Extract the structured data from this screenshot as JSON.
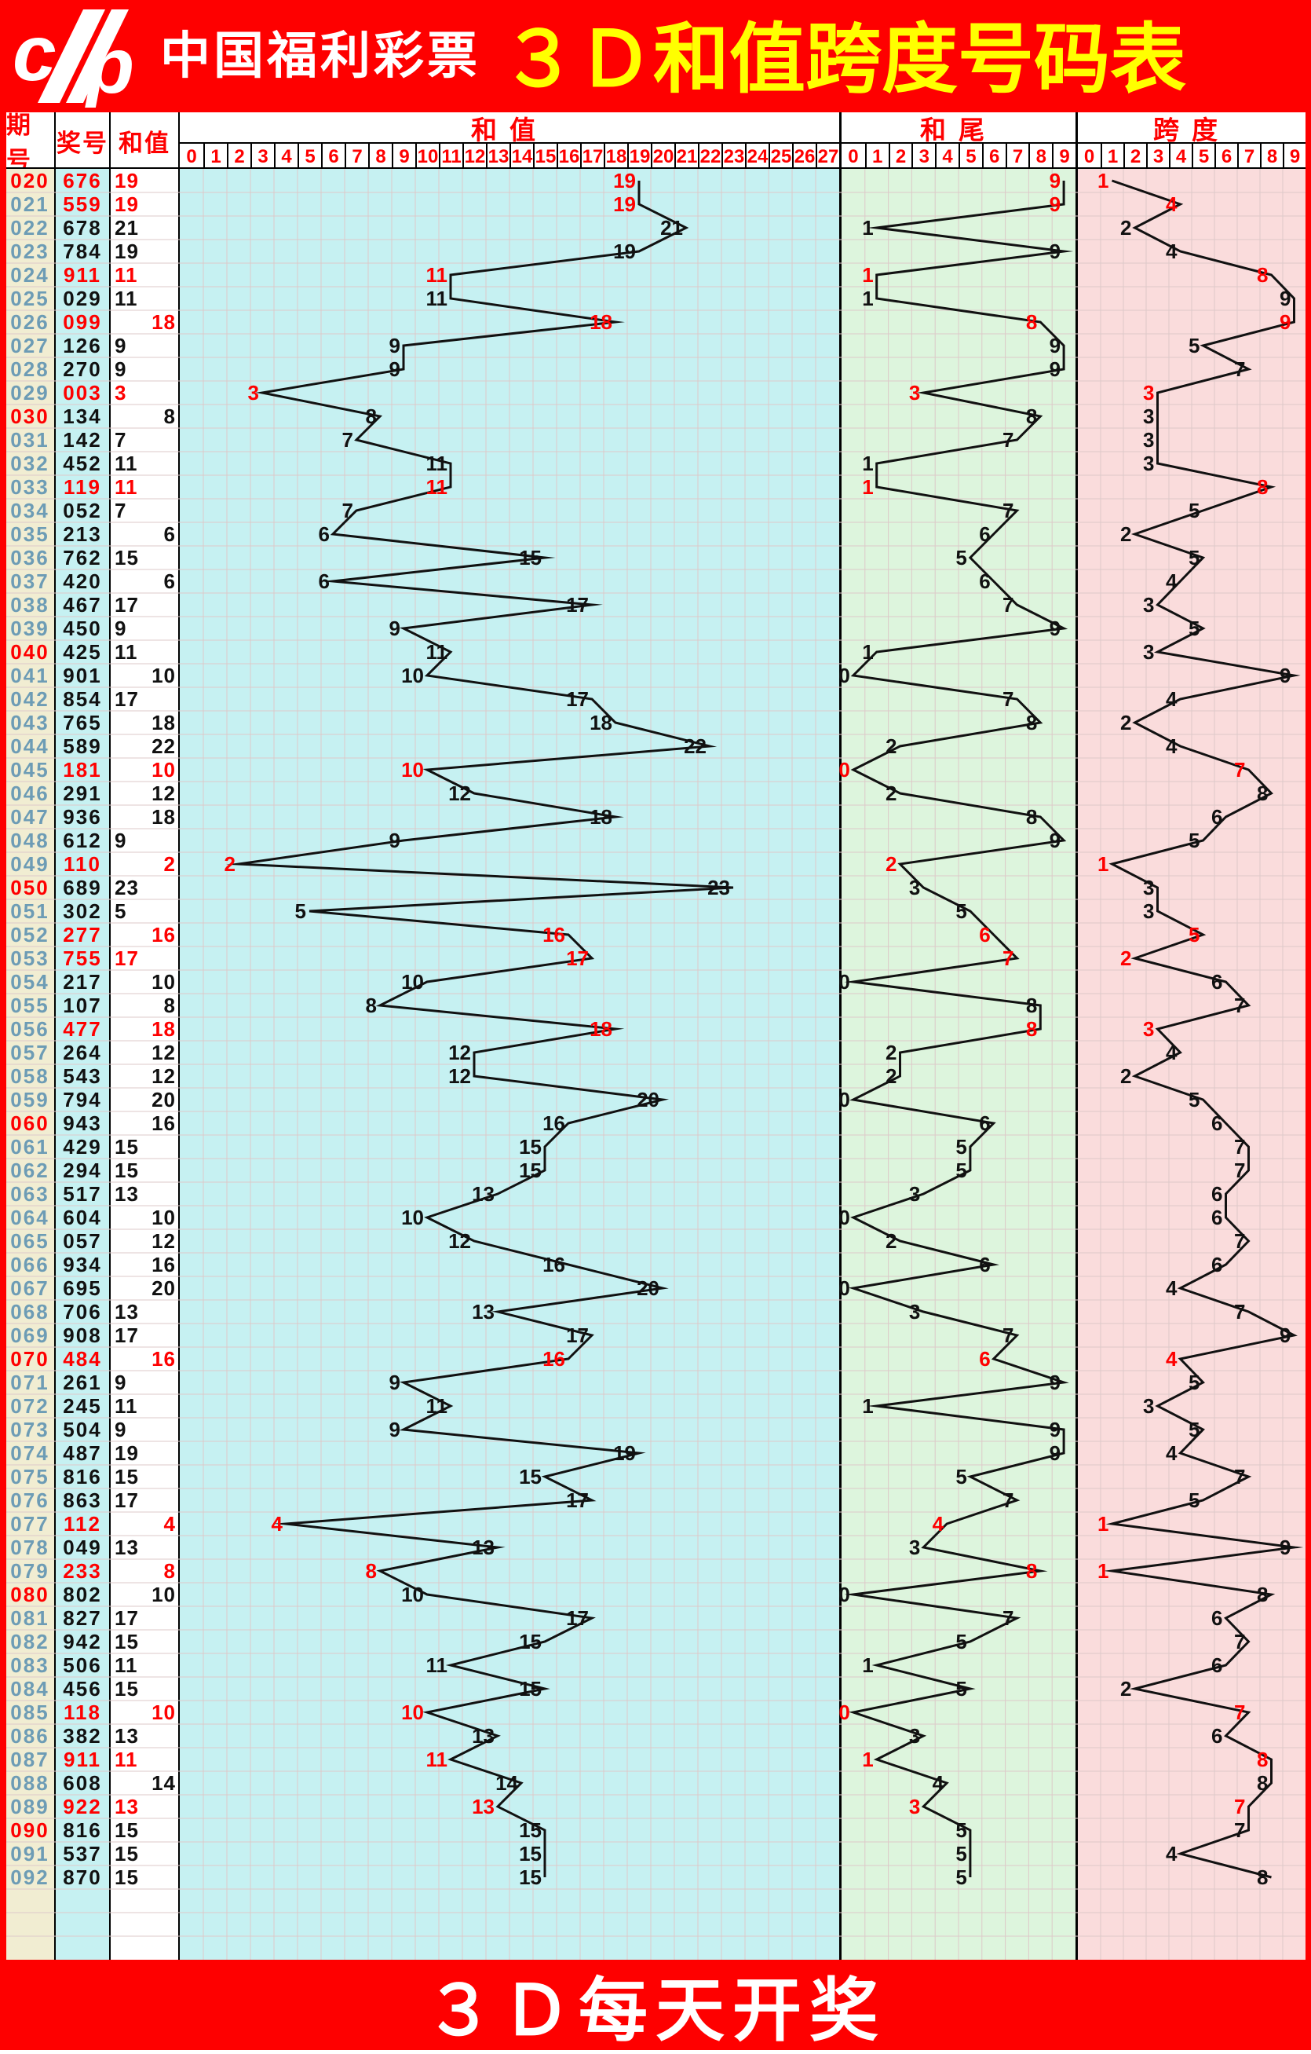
{
  "banner": {
    "brand": "中国福利彩票",
    "title": "３Ｄ和值跨度号码表",
    "logo": "china-welfare-lottery-cp-logo"
  },
  "footer": {
    "text": "３Ｄ每天开奖"
  },
  "table": {
    "headers": {
      "period": "期号",
      "number": "奖号",
      "sum": "和值"
    },
    "panels": [
      {
        "title": "和值",
        "ticks": [
          0,
          1,
          2,
          3,
          4,
          5,
          6,
          7,
          8,
          9,
          10,
          11,
          12,
          13,
          14,
          15,
          16,
          17,
          18,
          19,
          20,
          21,
          22,
          23,
          24,
          25,
          26,
          27
        ]
      },
      {
        "title": "和尾",
        "ticks": [
          0,
          1,
          2,
          3,
          4,
          5,
          6,
          7,
          8,
          9
        ]
      },
      {
        "title": "跨度",
        "ticks": [
          0,
          1,
          2,
          3,
          4,
          5,
          6,
          7,
          8,
          9
        ]
      }
    ]
  },
  "colors": {
    "banner_red": "#fe0000",
    "title_yellow": "#ffff00",
    "sum_panel_bg": "#c6f1f2",
    "tail_panel_bg": "#ddf5dd",
    "span_panel_bg": "#fadcdc",
    "period_col_bg": "#f1edd2",
    "number_col_bg": "#c6f1f2",
    "sum_col_bg": "#ffffff",
    "period_text": "#6d9cb5",
    "highlight_red": "#fe0000",
    "line_black": "#111111",
    "grid_line": "#ddc9c9"
  },
  "rows": [
    {
      "p": "020",
      "n": "676",
      "s": 19,
      "t": 9,
      "k": 1,
      "pair": true,
      "hl": true
    },
    {
      "p": "021",
      "n": "559",
      "s": 19,
      "t": 9,
      "k": 4,
      "pair": true,
      "hl": false
    },
    {
      "p": "022",
      "n": "678",
      "s": 21,
      "t": 1,
      "k": 2,
      "pair": false,
      "hl": false
    },
    {
      "p": "023",
      "n": "784",
      "s": 19,
      "t": 9,
      "k": 4,
      "pair": false,
      "hl": false
    },
    {
      "p": "024",
      "n": "911",
      "s": 11,
      "t": 1,
      "k": 8,
      "pair": true,
      "hl": false
    },
    {
      "p": "025",
      "n": "029",
      "s": 11,
      "t": 1,
      "k": 9,
      "pair": false,
      "hl": false
    },
    {
      "p": "026",
      "n": "099",
      "s": 18,
      "t": 8,
      "k": 9,
      "pair": true,
      "hl": false
    },
    {
      "p": "027",
      "n": "126",
      "s": 9,
      "t": 9,
      "k": 5,
      "pair": false,
      "hl": false
    },
    {
      "p": "028",
      "n": "270",
      "s": 9,
      "t": 9,
      "k": 7,
      "pair": false,
      "hl": false
    },
    {
      "p": "029",
      "n": "003",
      "s": 3,
      "t": 3,
      "k": 3,
      "pair": true,
      "hl": false
    },
    {
      "p": "030",
      "n": "134",
      "s": 8,
      "t": 8,
      "k": 3,
      "pair": false,
      "hl": true
    },
    {
      "p": "031",
      "n": "142",
      "s": 7,
      "t": 7,
      "k": 3,
      "pair": false,
      "hl": false
    },
    {
      "p": "032",
      "n": "452",
      "s": 11,
      "t": 1,
      "k": 3,
      "pair": false,
      "hl": false
    },
    {
      "p": "033",
      "n": "119",
      "s": 11,
      "t": 1,
      "k": 8,
      "pair": true,
      "hl": false
    },
    {
      "p": "034",
      "n": "052",
      "s": 7,
      "t": 7,
      "k": 5,
      "pair": false,
      "hl": false
    },
    {
      "p": "035",
      "n": "213",
      "s": 6,
      "t": 6,
      "k": 2,
      "pair": false,
      "hl": false
    },
    {
      "p": "036",
      "n": "762",
      "s": 15,
      "t": 5,
      "k": 5,
      "pair": false,
      "hl": false
    },
    {
      "p": "037",
      "n": "420",
      "s": 6,
      "t": 6,
      "k": 4,
      "pair": false,
      "hl": false
    },
    {
      "p": "038",
      "n": "467",
      "s": 17,
      "t": 7,
      "k": 3,
      "pair": false,
      "hl": false
    },
    {
      "p": "039",
      "n": "450",
      "s": 9,
      "t": 9,
      "k": 5,
      "pair": false,
      "hl": false
    },
    {
      "p": "040",
      "n": "425",
      "s": 11,
      "t": 1,
      "k": 3,
      "pair": false,
      "hl": true
    },
    {
      "p": "041",
      "n": "901",
      "s": 10,
      "t": 0,
      "k": 9,
      "pair": false,
      "hl": false
    },
    {
      "p": "042",
      "n": "854",
      "s": 17,
      "t": 7,
      "k": 4,
      "pair": false,
      "hl": false
    },
    {
      "p": "043",
      "n": "765",
      "s": 18,
      "t": 8,
      "k": 2,
      "pair": false,
      "hl": false
    },
    {
      "p": "044",
      "n": "589",
      "s": 22,
      "t": 2,
      "k": 4,
      "pair": false,
      "hl": false
    },
    {
      "p": "045",
      "n": "181",
      "s": 10,
      "t": 0,
      "k": 7,
      "pair": true,
      "hl": false
    },
    {
      "p": "046",
      "n": "291",
      "s": 12,
      "t": 2,
      "k": 8,
      "pair": false,
      "hl": false
    },
    {
      "p": "047",
      "n": "936",
      "s": 18,
      "t": 8,
      "k": 6,
      "pair": false,
      "hl": false
    },
    {
      "p": "048",
      "n": "612",
      "s": 9,
      "t": 9,
      "k": 5,
      "pair": false,
      "hl": false
    },
    {
      "p": "049",
      "n": "110",
      "s": 2,
      "t": 2,
      "k": 1,
      "pair": true,
      "hl": false
    },
    {
      "p": "050",
      "n": "689",
      "s": 23,
      "t": 3,
      "k": 3,
      "pair": false,
      "hl": true
    },
    {
      "p": "051",
      "n": "302",
      "s": 5,
      "t": 5,
      "k": 3,
      "pair": false,
      "hl": false
    },
    {
      "p": "052",
      "n": "277",
      "s": 16,
      "t": 6,
      "k": 5,
      "pair": true,
      "hl": false
    },
    {
      "p": "053",
      "n": "755",
      "s": 17,
      "t": 7,
      "k": 2,
      "pair": true,
      "hl": false
    },
    {
      "p": "054",
      "n": "217",
      "s": 10,
      "t": 0,
      "k": 6,
      "pair": false,
      "hl": false
    },
    {
      "p": "055",
      "n": "107",
      "s": 8,
      "t": 8,
      "k": 7,
      "pair": false,
      "hl": false
    },
    {
      "p": "056",
      "n": "477",
      "s": 18,
      "t": 8,
      "k": 3,
      "pair": true,
      "hl": false
    },
    {
      "p": "057",
      "n": "264",
      "s": 12,
      "t": 2,
      "k": 4,
      "pair": false,
      "hl": false
    },
    {
      "p": "058",
      "n": "543",
      "s": 12,
      "t": 2,
      "k": 2,
      "pair": false,
      "hl": false
    },
    {
      "p": "059",
      "n": "794",
      "s": 20,
      "t": 0,
      "k": 5,
      "pair": false,
      "hl": false
    },
    {
      "p": "060",
      "n": "943",
      "s": 16,
      "t": 6,
      "k": 6,
      "pair": false,
      "hl": true
    },
    {
      "p": "061",
      "n": "429",
      "s": 15,
      "t": 5,
      "k": 7,
      "pair": false,
      "hl": false
    },
    {
      "p": "062",
      "n": "294",
      "s": 15,
      "t": 5,
      "k": 7,
      "pair": false,
      "hl": false
    },
    {
      "p": "063",
      "n": "517",
      "s": 13,
      "t": 3,
      "k": 6,
      "pair": false,
      "hl": false
    },
    {
      "p": "064",
      "n": "604",
      "s": 10,
      "t": 0,
      "k": 6,
      "pair": false,
      "hl": false
    },
    {
      "p": "065",
      "n": "057",
      "s": 12,
      "t": 2,
      "k": 7,
      "pair": false,
      "hl": false
    },
    {
      "p": "066",
      "n": "934",
      "s": 16,
      "t": 6,
      "k": 6,
      "pair": false,
      "hl": false
    },
    {
      "p": "067",
      "n": "695",
      "s": 20,
      "t": 0,
      "k": 4,
      "pair": false,
      "hl": false
    },
    {
      "p": "068",
      "n": "706",
      "s": 13,
      "t": 3,
      "k": 7,
      "pair": false,
      "hl": false
    },
    {
      "p": "069",
      "n": "908",
      "s": 17,
      "t": 7,
      "k": 9,
      "pair": false,
      "hl": false
    },
    {
      "p": "070",
      "n": "484",
      "s": 16,
      "t": 6,
      "k": 4,
      "pair": true,
      "hl": true
    },
    {
      "p": "071",
      "n": "261",
      "s": 9,
      "t": 9,
      "k": 5,
      "pair": false,
      "hl": false
    },
    {
      "p": "072",
      "n": "245",
      "s": 11,
      "t": 1,
      "k": 3,
      "pair": false,
      "hl": false
    },
    {
      "p": "073",
      "n": "504",
      "s": 9,
      "t": 9,
      "k": 5,
      "pair": false,
      "hl": false
    },
    {
      "p": "074",
      "n": "487",
      "s": 19,
      "t": 9,
      "k": 4,
      "pair": false,
      "hl": false
    },
    {
      "p": "075",
      "n": "816",
      "s": 15,
      "t": 5,
      "k": 7,
      "pair": false,
      "hl": false
    },
    {
      "p": "076",
      "n": "863",
      "s": 17,
      "t": 7,
      "k": 5,
      "pair": false,
      "hl": false
    },
    {
      "p": "077",
      "n": "112",
      "s": 4,
      "t": 4,
      "k": 1,
      "pair": true,
      "hl": false
    },
    {
      "p": "078",
      "n": "049",
      "s": 13,
      "t": 3,
      "k": 9,
      "pair": false,
      "hl": false
    },
    {
      "p": "079",
      "n": "233",
      "s": 8,
      "t": 8,
      "k": 1,
      "pair": true,
      "hl": false
    },
    {
      "p": "080",
      "n": "802",
      "s": 10,
      "t": 0,
      "k": 8,
      "pair": false,
      "hl": true
    },
    {
      "p": "081",
      "n": "827",
      "s": 17,
      "t": 7,
      "k": 6,
      "pair": false,
      "hl": false
    },
    {
      "p": "082",
      "n": "942",
      "s": 15,
      "t": 5,
      "k": 7,
      "pair": false,
      "hl": false
    },
    {
      "p": "083",
      "n": "506",
      "s": 11,
      "t": 1,
      "k": 6,
      "pair": false,
      "hl": false
    },
    {
      "p": "084",
      "n": "456",
      "s": 15,
      "t": 5,
      "k": 2,
      "pair": false,
      "hl": false
    },
    {
      "p": "085",
      "n": "118",
      "s": 10,
      "t": 0,
      "k": 7,
      "pair": true,
      "hl": false
    },
    {
      "p": "086",
      "n": "382",
      "s": 13,
      "t": 3,
      "k": 6,
      "pair": false,
      "hl": false
    },
    {
      "p": "087",
      "n": "911",
      "s": 11,
      "t": 1,
      "k": 8,
      "pair": true,
      "hl": false
    },
    {
      "p": "088",
      "n": "608",
      "s": 14,
      "t": 4,
      "k": 8,
      "pair": false,
      "hl": false
    },
    {
      "p": "089",
      "n": "922",
      "s": 13,
      "t": 3,
      "k": 7,
      "pair": true,
      "hl": false
    },
    {
      "p": "090",
      "n": "816",
      "s": 15,
      "t": 5,
      "k": 7,
      "pair": false,
      "hl": true
    },
    {
      "p": "091",
      "n": "537",
      "s": 15,
      "t": 5,
      "k": 4,
      "pair": false,
      "hl": false
    },
    {
      "p": "092",
      "n": "870",
      "s": 15,
      "t": 5,
      "k": 8,
      "pair": false,
      "hl": false
    }
  ],
  "chart_data": {
    "type": "line",
    "title": "３Ｄ和值跨度号码表",
    "x": [
      "020",
      "021",
      "022",
      "023",
      "024",
      "025",
      "026",
      "027",
      "028",
      "029",
      "030",
      "031",
      "032",
      "033",
      "034",
      "035",
      "036",
      "037",
      "038",
      "039",
      "040",
      "041",
      "042",
      "043",
      "044",
      "045",
      "046",
      "047",
      "048",
      "049",
      "050",
      "051",
      "052",
      "053",
      "054",
      "055",
      "056",
      "057",
      "058",
      "059",
      "060",
      "061",
      "062",
      "063",
      "064",
      "065",
      "066",
      "067",
      "068",
      "069",
      "070",
      "071",
      "072",
      "073",
      "074",
      "075",
      "076",
      "077",
      "078",
      "079",
      "080",
      "081",
      "082",
      "083",
      "084",
      "085",
      "086",
      "087",
      "088",
      "089",
      "090",
      "091",
      "092"
    ],
    "series": [
      {
        "name": "和值",
        "axis_range": [
          0,
          27
        ],
        "values": [
          19,
          19,
          21,
          19,
          11,
          11,
          18,
          9,
          9,
          3,
          8,
          7,
          11,
          11,
          7,
          6,
          15,
          6,
          17,
          9,
          11,
          10,
          17,
          18,
          22,
          10,
          12,
          18,
          9,
          2,
          23,
          5,
          16,
          17,
          10,
          8,
          18,
          12,
          12,
          20,
          16,
          15,
          15,
          13,
          10,
          12,
          16,
          20,
          13,
          17,
          16,
          9,
          11,
          9,
          19,
          15,
          17,
          4,
          13,
          8,
          10,
          17,
          15,
          11,
          15,
          10,
          13,
          11,
          14,
          13,
          15,
          15,
          15
        ]
      },
      {
        "name": "和尾",
        "axis_range": [
          0,
          9
        ],
        "values": [
          9,
          9,
          1,
          9,
          1,
          1,
          8,
          9,
          9,
          3,
          8,
          7,
          1,
          1,
          7,
          6,
          5,
          6,
          7,
          9,
          1,
          0,
          7,
          8,
          2,
          0,
          2,
          8,
          9,
          2,
          3,
          5,
          6,
          7,
          0,
          8,
          8,
          2,
          2,
          0,
          6,
          5,
          5,
          3,
          0,
          2,
          6,
          0,
          3,
          7,
          6,
          9,
          1,
          9,
          9,
          5,
          7,
          4,
          3,
          8,
          0,
          7,
          5,
          1,
          5,
          0,
          3,
          1,
          4,
          3,
          5,
          5,
          5
        ]
      },
      {
        "name": "跨度",
        "axis_range": [
          0,
          9
        ],
        "values": [
          1,
          4,
          2,
          4,
          8,
          9,
          9,
          5,
          7,
          3,
          3,
          3,
          3,
          8,
          5,
          2,
          5,
          4,
          3,
          5,
          3,
          9,
          4,
          2,
          4,
          7,
          8,
          6,
          5,
          1,
          3,
          3,
          5,
          2,
          6,
          7,
          3,
          4,
          2,
          5,
          6,
          7,
          7,
          6,
          6,
          7,
          6,
          4,
          7,
          9,
          4,
          5,
          3,
          5,
          4,
          7,
          5,
          1,
          9,
          1,
          8,
          6,
          7,
          6,
          2,
          7,
          6,
          8,
          8,
          7,
          7,
          4,
          8
        ]
      }
    ],
    "red_marked_periods": [
      "020",
      "021",
      "024",
      "026",
      "029",
      "033",
      "045",
      "049",
      "052",
      "053",
      "056",
      "070",
      "077",
      "079",
      "085",
      "087",
      "089"
    ],
    "bold_red_periods": [
      "020",
      "030",
      "040",
      "050",
      "060",
      "070",
      "080",
      "090"
    ],
    "grid": true,
    "legend_position": "none",
    "note": "zigzag trend chart; value labels plotted at each point; even sums right-aligned in 和值 column, odd sums left-aligned"
  }
}
